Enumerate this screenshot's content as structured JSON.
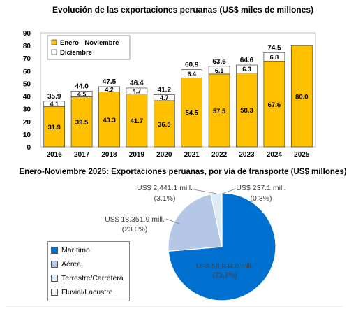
{
  "chart_data": [
    {
      "type": "bar",
      "title": "Evolución de las exportaciones peruanas (US$ miles de millones)",
      "categories": [
        "2016",
        "2017",
        "2018",
        "2019",
        "2020",
        "2021",
        "2022",
        "2023",
        "2024",
        "2025"
      ],
      "series": [
        {
          "name": "Enero - Noviembre",
          "values": [
            31.9,
            39.5,
            43.3,
            41.7,
            36.5,
            54.5,
            57.5,
            58.3,
            67.6,
            80.0
          ],
          "color": "#FFC000",
          "labels": [
            "31.9",
            "39.5",
            "43.3",
            "41.7",
            "36.5",
            "54.5",
            "57.5",
            "58.3",
            "67.6",
            "80.0"
          ]
        },
        {
          "name": "Diciembre",
          "values": [
            4.1,
            4.5,
            4.2,
            4.7,
            4.7,
            6.4,
            6.1,
            6.3,
            6.8,
            null
          ],
          "color": "#FFFFFF",
          "labels": [
            "4.1",
            "4.5",
            "4.2",
            "4.7",
            "4.7",
            "6.4",
            "6.1",
            "6.3",
            "6.8",
            ""
          ]
        }
      ],
      "totals": [
        "35.9",
        "44.0",
        "47.5",
        "46.4",
        "41.2",
        "60.9",
        "63.6",
        "64.6",
        "74.5",
        ""
      ],
      "ylim": [
        0,
        90
      ],
      "yticks": [
        "0",
        "10",
        "20",
        "30",
        "40",
        "50",
        "60",
        "70",
        "80",
        "90"
      ],
      "stacked": true,
      "legend_position": "top-left"
    },
    {
      "type": "pie",
      "title": "Enero-Noviembre 2025: Exportaciones peruanas, por vía de transporte (US$ millones)",
      "slices": [
        {
          "name": "Marítimo",
          "value": 58934.0,
          "label": "US$ 58,934.0 mill.",
          "pct": "(73.7%)",
          "color": "#0070D0"
        },
        {
          "name": "Aérea",
          "value": 18351.9,
          "label": "US$ 18,351.9 mill.",
          "pct": "(23.0%)",
          "color": "#B4C7E7"
        },
        {
          "name": "Terrestre/Carretera",
          "value": 2441.1,
          "label": "US$ 2,441.1 mill.",
          "pct": "(3.1%)",
          "color": "#DEEBF7"
        },
        {
          "name": "Fluvial/Lacustre",
          "value": 237.1,
          "label": "US$ 237.1 mill.",
          "pct": "(0.3%)",
          "color": "#F2F2F2"
        }
      ],
      "legend_position": "left"
    }
  ]
}
